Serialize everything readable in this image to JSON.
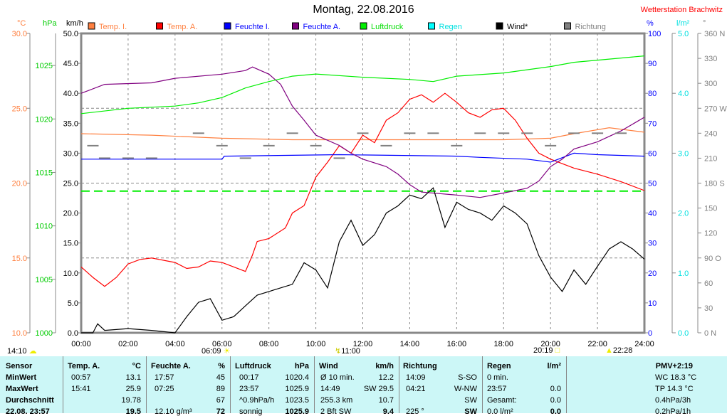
{
  "header": {
    "title": "Montag, 22.08.2016",
    "station": "Wetterstation Brachwitz"
  },
  "colors": {
    "temp_i": "#ff8040",
    "temp_a": "#ff0000",
    "feuchte_i": "#0000ff",
    "feuchte_a": "#800080",
    "luftdruck": "#00ee00",
    "regen": "#00ffff",
    "wind": "#000000",
    "richtung": "#808080"
  },
  "chart_data": {
    "type": "line",
    "title": "Montag, 22.08.2016",
    "xlabel": "",
    "x_ticks": [
      "00:00",
      "02:00",
      "04:00",
      "06:00",
      "08:00",
      "10:00",
      "12:00",
      "14:00",
      "16:00",
      "18:00",
      "20:00",
      "22:00",
      "24:00"
    ],
    "xlim": [
      0,
      24
    ],
    "axes": [
      {
        "unit": "°C",
        "range": [
          10,
          30
        ],
        "ticks": [
          "10.0",
          "15.0",
          "20.0",
          "25.0",
          "30.0"
        ],
        "color": "#ff8040"
      },
      {
        "unit": "hPa",
        "range": [
          1000,
          1028
        ],
        "ticks": [
          "1000",
          "1005",
          "1010",
          "1015",
          "1020",
          "1025"
        ],
        "color": "#00cc00"
      },
      {
        "unit": "km/h",
        "range": [
          0,
          50
        ],
        "ticks": [
          "0.0",
          "5.0",
          "10.0",
          "15.0",
          "20.0",
          "25.0",
          "30.0",
          "35.0",
          "40.0",
          "45.0",
          "50.0"
        ],
        "color": "#000000"
      },
      {
        "unit": "%",
        "range": [
          0,
          100
        ],
        "ticks": [
          "0",
          "10",
          "20",
          "30",
          "40",
          "50",
          "60",
          "70",
          "80",
          "90",
          "100"
        ],
        "color": "#0000ff"
      },
      {
        "unit": "l/m²",
        "range": [
          0,
          5
        ],
        "ticks": [
          "0.0",
          "1.0",
          "2.0",
          "3.0",
          "4.0",
          "5.0"
        ],
        "color": "#00e0e0"
      },
      {
        "unit": "°",
        "range": [
          0,
          360
        ],
        "ticks": [
          "0   N",
          "30",
          "60",
          "90  O",
          "120",
          "150",
          "180 S",
          "210",
          "240",
          "270 W",
          "300",
          "330",
          "360 N"
        ],
        "color": "#808080"
      }
    ],
    "legend": [
      "Temp. I.",
      "Temp. A.",
      "Feuchte I.",
      "Feuchte A.",
      "Luftdruck",
      "Regen",
      "Wind*",
      "Richtung"
    ],
    "legend_placement": "top",
    "reference_line": {
      "series": "Luftdruck",
      "value": 1013.25
    },
    "series": [
      {
        "name": "Temp. I.",
        "axis": 0,
        "x": [
          0,
          3,
          6,
          9,
          12,
          15,
          18,
          20,
          21,
          22.5,
          24
        ],
        "y": [
          23.3,
          23.2,
          23,
          22.9,
          22.9,
          22.9,
          22.9,
          23,
          23.3,
          23.7,
          23.4
        ]
      },
      {
        "name": "Temp. A.",
        "axis": 0,
        "x": [
          0,
          0.5,
          1,
          1.5,
          2,
          2.5,
          3,
          4,
          4.5,
          5,
          5.5,
          6,
          7,
          7.3,
          7.5,
          8,
          8.7,
          9,
          9.5,
          10,
          10.5,
          11,
          11.5,
          12,
          12.5,
          13,
          13.5,
          14,
          14.5,
          15,
          15.5,
          16,
          16.5,
          17,
          17.5,
          18,
          18.5,
          19,
          19.5,
          20,
          21,
          22,
          23,
          24
        ],
        "y": [
          14.4,
          13.7,
          13.1,
          13.7,
          14.6,
          14.9,
          15,
          14.7,
          14.3,
          14.4,
          14.8,
          14.7,
          14.1,
          15.2,
          16.1,
          16.3,
          17,
          18,
          18.5,
          20.4,
          21.4,
          22.5,
          22,
          23.2,
          22.7,
          24.2,
          24.7,
          25.6,
          25.9,
          25.4,
          26,
          25.4,
          24.7,
          24.4,
          24.9,
          25,
          24.2,
          23,
          22,
          21.6,
          21,
          20.6,
          20.1,
          19.5
        ]
      },
      {
        "name": "Feuchte I.",
        "axis": 3,
        "x": [
          0,
          6,
          6.1,
          11,
          16,
          17,
          19,
          20,
          21,
          22,
          24
        ],
        "y": [
          58,
          58,
          59,
          59.5,
          59,
          58.6,
          58,
          57,
          60,
          59.5,
          59
        ]
      },
      {
        "name": "Feuchte A.",
        "axis": 3,
        "x": [
          0,
          1,
          3,
          4,
          6,
          7,
          7.3,
          8,
          8.5,
          9,
          9.5,
          10,
          11,
          11.5,
          12,
          13,
          13.5,
          14,
          14.5,
          16,
          17,
          18,
          19,
          19.5,
          20,
          20.5,
          21,
          22,
          23,
          24
        ],
        "y": [
          80,
          83,
          83.5,
          85,
          86.4,
          87.6,
          88.8,
          86.4,
          83,
          75.7,
          71,
          66,
          62.6,
          60,
          58,
          55.5,
          53,
          49.5,
          47,
          46,
          45.2,
          46.7,
          48.3,
          50.7,
          55.5,
          58,
          61.4,
          63.8,
          67.4,
          72
        ]
      },
      {
        "name": "Luftdruck",
        "axis": 1,
        "x": [
          0,
          2,
          4,
          5,
          6,
          7,
          8,
          9,
          10,
          12,
          14,
          15,
          16,
          18,
          20,
          21,
          22,
          24
        ],
        "y": [
          1020.5,
          1021,
          1021.2,
          1021.5,
          1022,
          1022.9,
          1023.5,
          1024,
          1024.2,
          1023.9,
          1023.7,
          1023.5,
          1024,
          1024.3,
          1024.9,
          1025.3,
          1025.5,
          1025.9
        ]
      },
      {
        "name": "Regen",
        "axis": 4,
        "x": [
          0,
          24
        ],
        "y": [
          0,
          0
        ]
      },
      {
        "name": "Wind*",
        "axis": 2,
        "x": [
          0,
          0.5,
          0.7,
          1,
          2,
          3,
          4,
          4.5,
          5,
          5.5,
          6,
          6.5,
          7,
          7.5,
          8,
          9,
          9.5,
          10,
          10.5,
          11,
          11.5,
          12,
          12.5,
          13,
          13.5,
          14,
          14.5,
          15,
          15.5,
          16,
          16.5,
          17,
          17.5,
          18,
          18.5,
          19,
          19.5,
          20,
          20.5,
          21,
          21.5,
          22,
          22.5,
          23,
          23.5,
          24
        ],
        "y": [
          0,
          0,
          1.5,
          0.4,
          0.7,
          0.4,
          0,
          2.7,
          5.1,
          5.7,
          2.1,
          2.7,
          4.5,
          6.3,
          6.9,
          8.1,
          11.7,
          10.5,
          7.5,
          15.2,
          18.8,
          14.6,
          16.4,
          20,
          21.2,
          23,
          22.4,
          24.2,
          17.6,
          21.8,
          20.6,
          20,
          18.8,
          21.2,
          20,
          18.2,
          12.9,
          9.3,
          6.9,
          10.5,
          8.1,
          11.1,
          14,
          15.2,
          14,
          12.3
        ]
      },
      {
        "name": "Richtung",
        "axis": 5,
        "x": [
          0.5,
          1,
          2,
          3,
          5,
          6,
          7,
          8,
          9,
          10,
          11,
          12,
          13,
          14,
          15,
          16,
          17,
          18,
          19,
          20,
          21,
          22,
          23
        ],
        "y": [
          225,
          210,
          210,
          210,
          240,
          225,
          210,
          225,
          240,
          225,
          210,
          240,
          225,
          240,
          240,
          225,
          240,
          240,
          240,
          225,
          240,
          240,
          240
        ]
      }
    ]
  },
  "markers": {
    "left": "14:10",
    "sunrise": "06:09",
    "lightning": "11:00",
    "sunset": "20:19",
    "moon": "22:28"
  },
  "table": {
    "headers": [
      "Sensor",
      "Temp. A.",
      "°C",
      "Feuchte A.",
      "%",
      "Luftdruck",
      "hPa",
      "Wind",
      "km/h",
      "Richtung",
      "Regen",
      "l/m²",
      "PMV+2:19"
    ],
    "row_labels": [
      "MinWert",
      "MaxWert",
      "Durchschnitt",
      "22.08. 23:57"
    ],
    "temp": [
      [
        "00:57",
        "13.1"
      ],
      [
        "15:41",
        "25.9"
      ],
      [
        "",
        "19.78"
      ],
      [
        "",
        "19.5"
      ]
    ],
    "feuchte": [
      [
        "17:57",
        "45"
      ],
      [
        "07:25",
        "89"
      ],
      [
        "",
        "67"
      ],
      [
        "12.10 g/m³",
        "72"
      ]
    ],
    "druck": [
      [
        "00:17",
        "1020.4"
      ],
      [
        "23:57",
        "1025.9"
      ],
      [
        "^0.9hPa/h",
        "1023.5"
      ],
      [
        "sonnig",
        "1025.9"
      ]
    ],
    "wind": [
      [
        "Ø 10 min.",
        "12.2"
      ],
      [
        "14:49",
        "SW 29.5"
      ],
      [
        "255.3 km",
        "10.7"
      ],
      [
        "2 Bft SW",
        "9.4"
      ]
    ],
    "richtung": [
      [
        "14:09",
        "S-SO"
      ],
      [
        "04:21",
        "W-NW"
      ],
      [
        "",
        "SW"
      ],
      [
        "225 °",
        "SW"
      ]
    ],
    "regen": [
      [
        "0 min.",
        ""
      ],
      [
        "23:57",
        "0.0"
      ],
      [
        "Gesamt:",
        "0.0"
      ],
      [
        "0.0 l/m²",
        "0.0"
      ]
    ],
    "extra": [
      "WC 18.3 °C",
      "TP 14.3 °C",
      "0.4hPa/3h",
      "0.2hPa/1h"
    ]
  }
}
